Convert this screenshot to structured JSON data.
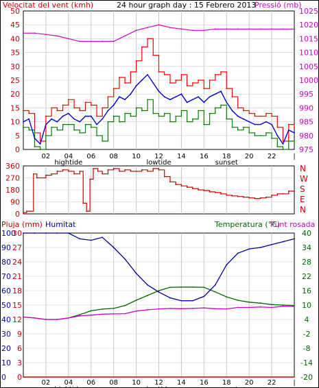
{
  "colors": {
    "wind_speed": "#ff0000",
    "wind_gust_outline": "#ff0000",
    "wind_average": "#0000cc",
    "wind_min": "#008000",
    "pressure": "#cc00cc",
    "direction": "#cc0000",
    "rain": "#cc0000",
    "humidity": "#000099",
    "temperature": "#006600",
    "dewpoint": "#cc00cc",
    "grid": "#c8c8c8",
    "axis_text_right_top": "#cc00cc",
    "axis_text_right_bottom": "#006600"
  },
  "chart_data": [
    {
      "type": "line",
      "title": "24 hour graph day : 15 Febrero 2013",
      "left_axis_label": "Velocitat del vent (kmh)",
      "right_axis_label": "Pressió (mb)",
      "x_ticks": [
        "02",
        "04",
        "06",
        "08",
        "10",
        "12",
        "14",
        "16",
        "18",
        "20",
        "22",
        "|"
      ],
      "x_annotations": [
        {
          "label": "hightide",
          "hour": 4
        },
        {
          "label": "lowtide",
          "hour": 12
        },
        {
          "label": "sunset",
          "hour": 18
        }
      ],
      "x_range_hours": [
        0,
        24
      ],
      "ylim_left": [
        0,
        50
      ],
      "yticks_left": [
        0,
        5,
        10,
        15,
        20,
        25,
        30,
        35,
        40,
        45,
        50
      ],
      "ylim_right": [
        975,
        1025
      ],
      "yticks_right": [
        975,
        980,
        985,
        990,
        995,
        1000,
        1005,
        1010,
        1015,
        1020,
        1025
      ],
      "grid": true,
      "series": [
        {
          "key": "gust",
          "axis": "left",
          "step": true,
          "x": [
            0,
            0.5,
            1,
            1.5,
            2,
            2.5,
            3,
            3.5,
            4,
            4.5,
            5,
            5.5,
            6,
            6.5,
            7,
            7.5,
            8,
            8.5,
            9,
            9.5,
            10,
            10.5,
            11,
            11.5,
            12,
            12.5,
            13,
            13.5,
            14,
            14.5,
            15,
            15.5,
            16,
            16.5,
            17,
            17.5,
            18,
            18.5,
            19,
            19.5,
            20,
            20.5,
            21,
            21.5,
            22,
            22.5,
            23,
            23.5,
            24
          ],
          "values": [
            14,
            13,
            6,
            3,
            12,
            15,
            14,
            16,
            18,
            15,
            14,
            17,
            16,
            12,
            15,
            19,
            22,
            26,
            24,
            28,
            32,
            37,
            40,
            34,
            28,
            27,
            24,
            25,
            27,
            23,
            24,
            25,
            22,
            25,
            27,
            28,
            22,
            19,
            15,
            14,
            13,
            12,
            12,
            13,
            12,
            8,
            3,
            9,
            8
          ]
        },
        {
          "key": "average",
          "axis": "left",
          "step": false,
          "x": [
            0,
            0.5,
            1,
            1.5,
            2,
            2.5,
            3,
            3.5,
            4,
            4.5,
            5,
            5.5,
            6,
            6.5,
            7,
            7.5,
            8,
            8.5,
            9,
            9.5,
            10,
            10.5,
            11,
            11.5,
            12,
            12.5,
            13,
            13.5,
            14,
            14.5,
            15,
            15.5,
            16,
            16.5,
            17,
            17.5,
            18,
            18.5,
            19,
            19.5,
            20,
            20.5,
            21,
            21.5,
            22,
            22.5,
            23,
            23.5,
            24
          ],
          "values": [
            10,
            11,
            4,
            2,
            9,
            11,
            10,
            12,
            13,
            11,
            10,
            12,
            12,
            9,
            11,
            14,
            16,
            19,
            18,
            20,
            23,
            25,
            27,
            24,
            21,
            19,
            18,
            19,
            20,
            17,
            18,
            19,
            17,
            19,
            20,
            21,
            17,
            14,
            12,
            11,
            10,
            9,
            9,
            10,
            9,
            5,
            2,
            7,
            6
          ]
        },
        {
          "key": "minimum",
          "axis": "left",
          "step": true,
          "x": [
            0,
            0.5,
            1,
            1.5,
            2,
            2.5,
            3,
            3.5,
            4,
            4.5,
            5,
            5.5,
            6,
            6.5,
            7,
            7.5,
            8,
            8.5,
            9,
            9.5,
            10,
            10.5,
            11,
            11.5,
            12,
            12.5,
            13,
            13.5,
            14,
            14.5,
            15,
            15.5,
            16,
            16.5,
            17,
            17.5,
            18,
            18.5,
            19,
            19.5,
            20,
            20.5,
            21,
            21.5,
            22,
            22.5,
            23,
            23.5,
            24
          ],
          "values": [
            8,
            7,
            1,
            0,
            5,
            8,
            7,
            9,
            9,
            7,
            6,
            9,
            8,
            5,
            3,
            10,
            12,
            10,
            13,
            12,
            15,
            14,
            18,
            13,
            12,
            13,
            10,
            12,
            14,
            10,
            11,
            14,
            9,
            13,
            15,
            16,
            11,
            8,
            7,
            8,
            6,
            5,
            5,
            6,
            4,
            1,
            0,
            3,
            2
          ]
        },
        {
          "key": "pressure",
          "axis": "right",
          "step": false,
          "x": [
            0,
            1,
            2,
            3,
            4,
            5,
            6,
            7,
            8,
            9,
            10,
            11,
            12,
            13,
            14,
            15,
            16,
            17,
            18,
            19,
            20,
            21,
            22,
            23,
            24
          ],
          "values": [
            1017,
            1017,
            1016.5,
            1016,
            1015,
            1014,
            1014,
            1014,
            1014,
            1016,
            1018,
            1019,
            1020,
            1019,
            1018.5,
            1018,
            1018,
            1018.5,
            1018.5,
            1018.5,
            1018.5,
            1018.5,
            1018.5,
            1018.5,
            1018.5
          ]
        }
      ]
    },
    {
      "type": "line",
      "right_axis_label": "NWSEN",
      "right_letters": [
        "N",
        "W",
        "S",
        "E",
        "N"
      ],
      "x_range_hours": [
        0,
        24
      ],
      "ylim": [
        0,
        360
      ],
      "yticks": [
        0,
        90,
        180,
        270,
        360
      ],
      "grid": true,
      "series": [
        {
          "key": "direction",
          "step": true,
          "x": [
            0,
            0.3,
            0.6,
            0.9,
            1.2,
            2,
            2.5,
            3,
            3.5,
            4,
            4.5,
            5,
            5.3,
            5.6,
            5.9,
            6.2,
            6.6,
            7,
            7.5,
            8,
            8.5,
            9,
            9.5,
            10,
            10.5,
            11,
            11.5,
            12,
            12.5,
            13,
            13.5,
            14,
            14.5,
            15,
            15.5,
            16,
            16.5,
            17,
            17.5,
            18,
            18.5,
            19,
            19.5,
            20,
            20.5,
            21,
            21.5,
            22,
            22.5,
            23,
            23.5,
            24
          ],
          "values": [
            10,
            20,
            20,
            300,
            270,
            290,
            300,
            320,
            330,
            320,
            300,
            320,
            80,
            20,
            260,
            340,
            320,
            300,
            330,
            340,
            320,
            330,
            320,
            320,
            330,
            320,
            340,
            330,
            280,
            240,
            220,
            210,
            200,
            190,
            180,
            175,
            165,
            160,
            150,
            140,
            135,
            130,
            125,
            120,
            115,
            120,
            125,
            140,
            150,
            150,
            170,
            170
          ]
        }
      ]
    },
    {
      "type": "line",
      "rain_label": "Pluja (mm)",
      "humidity_label": "Humitat",
      "temperature_label": "Temperatura (°C)",
      "dewpoint_label": "Punt rosada",
      "x_ticks": [
        "02",
        "04",
        "06",
        "08",
        "10",
        "12",
        "14",
        "16",
        "18",
        "20",
        "22",
        "|"
      ],
      "x_annotations": [
        {
          "label": "hightide",
          "hour": 4
        },
        {
          "label": "lowtide",
          "hour": 12
        },
        {
          "label": "sunset",
          "hour": 18
        }
      ],
      "x_range_hours": [
        0,
        24
      ],
      "rain_ylim": [
        0,
        30
      ],
      "rain_yticks": [
        0,
        3,
        6,
        9,
        12,
        15,
        18,
        21,
        24,
        27,
        30
      ],
      "humidity_ylim": [
        0,
        100
      ],
      "humidity_yticks": [
        0,
        10,
        20,
        30,
        40,
        50,
        60,
        70,
        80,
        90,
        100
      ],
      "temperature_ylim": [
        -20,
        40
      ],
      "temperature_yticks": [
        -20,
        -14,
        -8,
        -2,
        4,
        10,
        16,
        22,
        28,
        34,
        40
      ],
      "grid": true,
      "series": [
        {
          "key": "rain",
          "axis": "rain",
          "values_x": [
            0,
            24
          ],
          "values": [
            0,
            0
          ]
        },
        {
          "key": "humidity",
          "axis": "humidity",
          "x": [
            0,
            1,
            2,
            3,
            4,
            5,
            6,
            7,
            8,
            9,
            10,
            11,
            12,
            13,
            14,
            15,
            16,
            17,
            18,
            19,
            20,
            21,
            22,
            23,
            24
          ],
          "values": [
            100,
            100,
            100,
            100,
            100,
            96,
            95,
            97,
            90,
            82,
            72,
            64,
            59,
            55,
            53,
            53,
            56,
            64,
            78,
            86,
            89,
            90,
            92,
            94,
            96
          ]
        },
        {
          "key": "temperature",
          "axis": "temperature",
          "x": [
            0,
            1,
            2,
            3,
            4,
            5,
            6,
            7,
            8,
            9,
            10,
            11,
            12,
            13,
            14,
            15,
            16,
            17,
            18,
            19,
            20,
            21,
            22,
            23,
            24
          ],
          "values": [
            5,
            4.6,
            4,
            4,
            4.6,
            6,
            7.6,
            8.3,
            8.6,
            9.8,
            12,
            14,
            16,
            17.4,
            17.5,
            17.5,
            17.4,
            15.5,
            13.4,
            12,
            11.2,
            10.8,
            10.2,
            10,
            9.8
          ]
        },
        {
          "key": "dewpoint",
          "axis": "temperature",
          "x": [
            0,
            1,
            2,
            3,
            4,
            5,
            6,
            7,
            8,
            9,
            10,
            11,
            12,
            13,
            14,
            15,
            16,
            17,
            18,
            19,
            20,
            21,
            22,
            23,
            24
          ],
          "values": [
            5,
            4.6,
            4,
            4,
            4.6,
            5.5,
            5.8,
            6.2,
            6.3,
            6.4,
            7.5,
            8,
            8.4,
            8.6,
            8.5,
            8.6,
            8.8,
            8.5,
            8.4,
            9,
            9,
            9.2,
            9,
            9.5,
            9.4
          ]
        }
      ]
    }
  ]
}
